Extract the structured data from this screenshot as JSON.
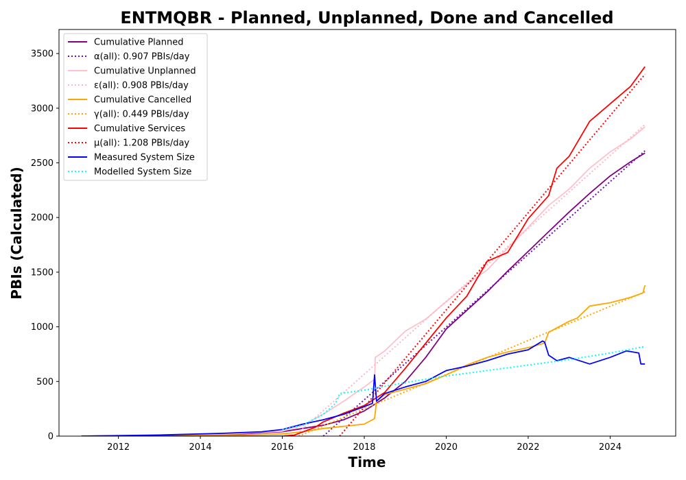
{
  "chart_data": {
    "type": "line",
    "title": "ENTMQBR - Planned, Unplanned, Done  and Cancelled",
    "xlabel": "Time",
    "ylabel": "PBIs (Calculated)",
    "xlim": [
      2010.55,
      2025.6
    ],
    "ylim": [
      0,
      3720
    ],
    "x_ticks": [
      2012,
      2014,
      2016,
      2018,
      2020,
      2022,
      2024
    ],
    "y_ticks": [
      0,
      500,
      1000,
      1500,
      2000,
      2500,
      3000,
      3500
    ],
    "grid": false,
    "legend_position": "top-left",
    "series": [
      {
        "name": "Cumulative Planned",
        "color": "#800080",
        "style": "solid",
        "x": [
          2011.1,
          2013,
          2015,
          2016.0,
          2016.5,
          2017.0,
          2017.5,
          2018.0,
          2018.5,
          2019.0,
          2019.5,
          2020.0,
          2020.5,
          2021.0,
          2021.5,
          2022.0,
          2022.5,
          2023.0,
          2023.5,
          2024.0,
          2024.5,
          2024.85
        ],
        "y": [
          0,
          5,
          20,
          40,
          70,
          100,
          150,
          230,
          350,
          500,
          720,
          980,
          1150,
          1320,
          1510,
          1690,
          1870,
          2050,
          2220,
          2380,
          2510,
          2590
        ]
      },
      {
        "name": "α(all): 0.907 PBIs/day",
        "color": "#6a0dad",
        "style": "dotted",
        "x": [
          2017.0,
          2024.85
        ],
        "y": [
          0,
          2610
        ]
      },
      {
        "name": "Cumulative Unplanned",
        "color": "#ffc0cb",
        "style": "solid",
        "x": [
          2011.1,
          2013,
          2015,
          2016.0,
          2016.5,
          2017.0,
          2017.5,
          2018.0,
          2018.25,
          2018.27,
          2018.5,
          2019.0,
          2019.5,
          2020.0,
          2020.5,
          2021.0,
          2021.5,
          2022.0,
          2022.5,
          2023.0,
          2023.5,
          2024.0,
          2024.5,
          2024.85
        ],
        "y": [
          0,
          5,
          25,
          45,
          100,
          200,
          320,
          450,
          520,
          720,
          780,
          960,
          1070,
          1230,
          1390,
          1520,
          1720,
          1910,
          2110,
          2260,
          2450,
          2600,
          2720,
          2830
        ]
      },
      {
        "name": "ε(all): 0.908 PBIs/day",
        "color": "#ffb6c1",
        "style": "dotted",
        "x": [
          2016.3,
          2024.85
        ],
        "y": [
          0,
          2850
        ]
      },
      {
        "name": "Cumulative Cancelled",
        "color": "#ffa500",
        "style": "solid",
        "x": [
          2011.1,
          2015,
          2016.0,
          2016.5,
          2017.0,
          2017.5,
          2018.0,
          2018.25,
          2018.3,
          2018.5,
          2019.0,
          2019.5,
          2020.0,
          2020.5,
          2021.0,
          2021.5,
          2022.0,
          2022.4,
          2022.5,
          2023.0,
          2023.2,
          2023.5,
          2024.0,
          2024.5,
          2024.8,
          2024.85
        ],
        "y": [
          0,
          10,
          20,
          40,
          70,
          90,
          110,
          160,
          320,
          380,
          430,
          480,
          560,
          650,
          720,
          770,
          810,
          850,
          950,
          1050,
          1080,
          1190,
          1220,
          1270,
          1310,
          1380
        ]
      },
      {
        "name": "γ(all): 0.449 PBIs/day",
        "color": "#ffa500",
        "style": "dotted",
        "x": [
          2016.4,
          2024.85
        ],
        "y": [
          0,
          1320
        ]
      },
      {
        "name": "Cumulative Services",
        "color": "#ff0000",
        "style": "solid",
        "x": [
          2011.1,
          2016.0,
          2016.3,
          2016.8,
          2017.0,
          2017.5,
          2018.0,
          2018.5,
          2019.0,
          2019.5,
          2020.0,
          2020.5,
          2021.0,
          2021.5,
          2022.0,
          2022.5,
          2022.7,
          2023.0,
          2023.5,
          2024.0,
          2024.5,
          2024.85
        ],
        "y": [
          0,
          0,
          10,
          80,
          130,
          210,
          280,
          400,
          620,
          850,
          1080,
          1280,
          1600,
          1680,
          1990,
          2200,
          2450,
          2560,
          2880,
          3040,
          3200,
          3380
        ]
      },
      {
        "name": "μ(all): 1.208 PBIs/day",
        "color": "#ff0000",
        "style": "dotted",
        "x": [
          2017.4,
          2024.85
        ],
        "y": [
          0,
          3310
        ]
      },
      {
        "name": "Measured System Size",
        "color": "#0000ff",
        "style": "solid",
        "x": [
          2011.1,
          2013,
          2014.5,
          2015.5,
          2016.0,
          2016.5,
          2017.0,
          2017.5,
          2018.0,
          2018.2,
          2018.25,
          2018.3,
          2018.5,
          2019.0,
          2019.5,
          2020.0,
          2020.5,
          2021.0,
          2021.5,
          2022.0,
          2022.35,
          2022.4,
          2022.5,
          2022.7,
          2023.0,
          2023.5,
          2024.0,
          2024.4,
          2024.7,
          2024.75,
          2024.85
        ],
        "y": [
          0,
          10,
          25,
          40,
          60,
          110,
          150,
          200,
          270,
          300,
          560,
          320,
          390,
          450,
          500,
          600,
          640,
          690,
          750,
          790,
          870,
          860,
          740,
          690,
          720,
          660,
          720,
          780,
          760,
          660,
          660
        ]
      },
      {
        "name": "Modelled System Size",
        "color": "#00ffff",
        "style": "dotted",
        "x": [
          2016.0,
          2016.5,
          2017.0,
          2017.3,
          2017.4,
          2018.0,
          2019.0,
          2020.0,
          2021.0,
          2022.0,
          2023.0,
          2024.0,
          2024.85
        ],
        "y": [
          60,
          100,
          200,
          300,
          390,
          420,
          490,
          550,
          600,
          650,
          700,
          760,
          820
        ]
      }
    ]
  }
}
